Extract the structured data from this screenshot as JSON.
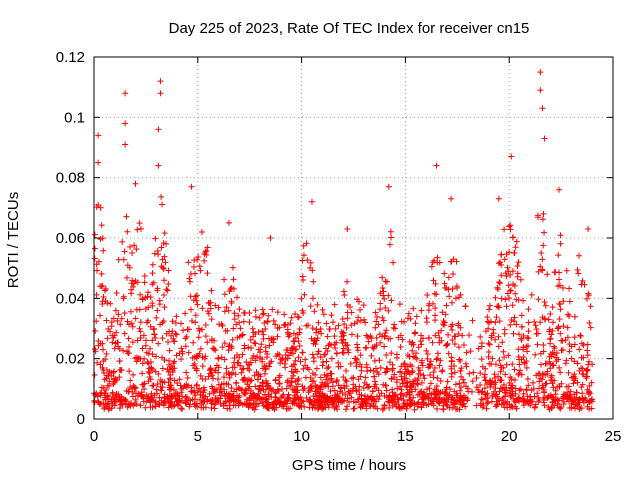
{
  "chart_data": {
    "type": "scatter",
    "title": "Day 225 of 2023, Rate Of TEC Index for receiver cn15",
    "xlabel": "GPS time / hours",
    "ylabel": "ROTI / TECUs",
    "xlim": [
      0,
      25
    ],
    "ylim": [
      0,
      0.12
    ],
    "x_ticks": [
      0,
      5,
      10,
      15,
      20,
      25
    ],
    "x_tick_labels": [
      "0",
      "5",
      "10",
      "15",
      "20",
      "25"
    ],
    "y_ticks": [
      0,
      0.02,
      0.04,
      0.06,
      0.08,
      0.1,
      0.12
    ],
    "y_tick_labels": [
      "0",
      "0.02",
      "0.04",
      "0.06",
      "0.08",
      "0.1",
      "0.12"
    ],
    "grid": true,
    "marker": "+",
    "marker_color": "#ff0000",
    "series": [
      {
        "name": "ROTI",
        "note": "dense red + markers covering 0–24 h; bulk between 0.003 and 0.03 TECU/s; notable peaks listed in peaks",
        "peaks": [
          {
            "x": 0.2,
            "y": 0.094
          },
          {
            "x": 0.2,
            "y": 0.085
          },
          {
            "x": 0.2,
            "y": 0.071
          },
          {
            "x": 1.5,
            "y": 0.108
          },
          {
            "x": 1.5,
            "y": 0.098
          },
          {
            "x": 1.5,
            "y": 0.091
          },
          {
            "x": 2.0,
            "y": 0.078
          },
          {
            "x": 3.2,
            "y": 0.112
          },
          {
            "x": 3.2,
            "y": 0.108
          },
          {
            "x": 3.1,
            "y": 0.096
          },
          {
            "x": 3.1,
            "y": 0.084
          },
          {
            "x": 4.7,
            "y": 0.077
          },
          {
            "x": 5.2,
            "y": 0.062
          },
          {
            "x": 6.5,
            "y": 0.065
          },
          {
            "x": 8.5,
            "y": 0.06
          },
          {
            "x": 10.5,
            "y": 0.072
          },
          {
            "x": 12.2,
            "y": 0.063
          },
          {
            "x": 14.2,
            "y": 0.077
          },
          {
            "x": 16.5,
            "y": 0.084
          },
          {
            "x": 17.2,
            "y": 0.073
          },
          {
            "x": 19.5,
            "y": 0.073
          },
          {
            "x": 20.1,
            "y": 0.087
          },
          {
            "x": 21.5,
            "y": 0.115
          },
          {
            "x": 21.5,
            "y": 0.109
          },
          {
            "x": 21.6,
            "y": 0.103
          },
          {
            "x": 21.7,
            "y": 0.093
          },
          {
            "x": 22.4,
            "y": 0.076
          },
          {
            "x": 23.8,
            "y": 0.063
          }
        ]
      }
    ]
  }
}
